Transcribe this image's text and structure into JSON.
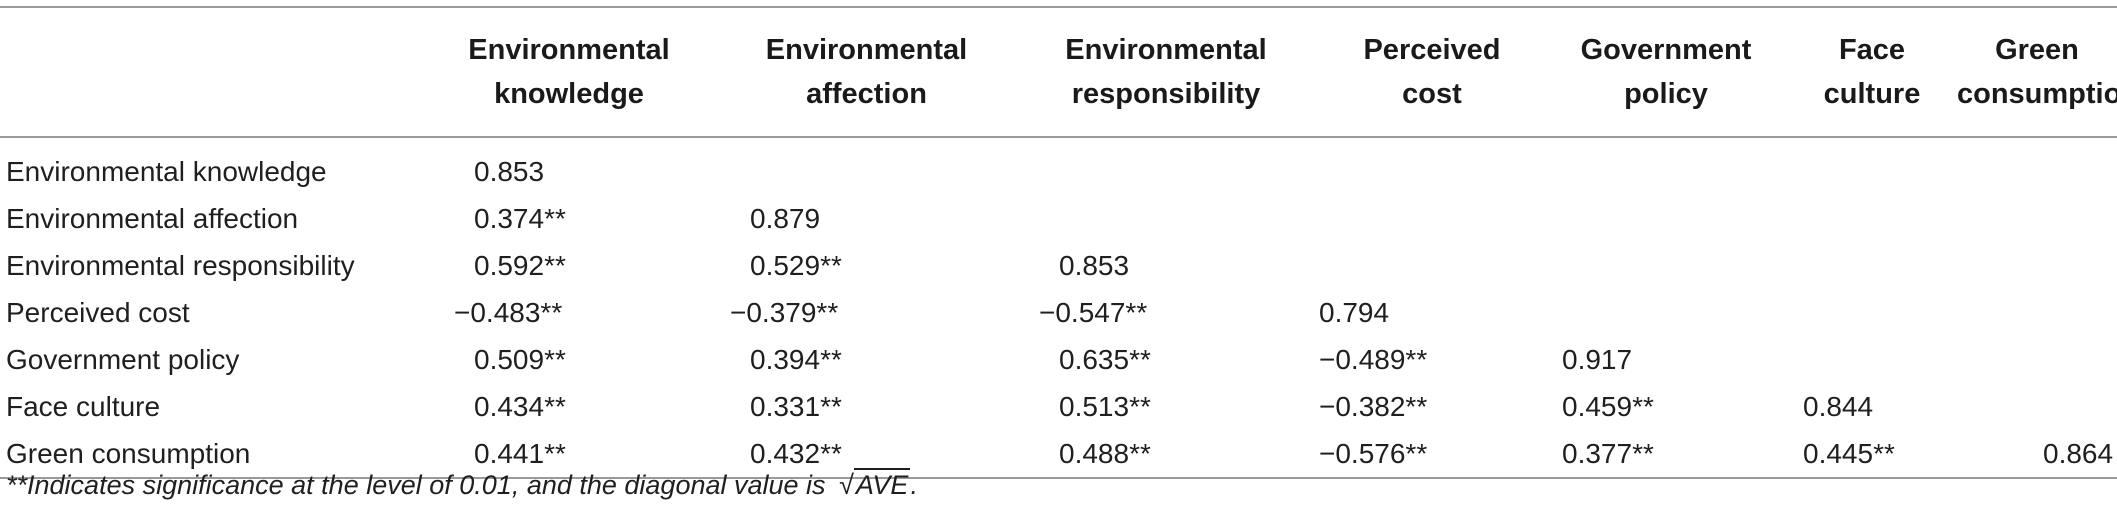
{
  "table": {
    "column_headers": [
      "",
      "Environmental knowledge",
      "Environmental affection",
      "Environmental responsibility",
      "Perceived cost",
      "Government policy",
      "Face culture",
      "Green consumption"
    ],
    "header_lines": [
      [
        "",
        ""
      ],
      [
        "Environmental",
        "knowledge"
      ],
      [
        "Environmental",
        "affection"
      ],
      [
        "Environmental",
        "responsibility"
      ],
      [
        "Perceived",
        "cost"
      ],
      [
        "Government",
        "policy"
      ],
      [
        "Face",
        "culture"
      ],
      [
        "Green",
        "consumption"
      ]
    ],
    "rows": [
      {
        "label": "Environmental knowledge",
        "cells": [
          "0.853",
          "",
          "",
          "",
          "",
          "",
          ""
        ]
      },
      {
        "label": "Environmental affection",
        "cells": [
          "0.374**",
          "0.879",
          "",
          "",
          "",
          "",
          ""
        ]
      },
      {
        "label": "Environmental responsibility",
        "cells": [
          "0.592**",
          "0.529**",
          "0.853",
          "",
          "",
          "",
          ""
        ]
      },
      {
        "label": "Perceived cost",
        "cells": [
          "−0.483**",
          "−0.379**",
          "−0.547**",
          "0.794",
          "",
          "",
          ""
        ]
      },
      {
        "label": "Government policy",
        "cells": [
          "0.509**",
          "0.394**",
          "0.635**",
          "−0.489**",
          "0.917",
          "",
          ""
        ]
      },
      {
        "label": "Face culture",
        "cells": [
          "0.434**",
          "0.331**",
          "0.513**",
          "−0.382**",
          "0.459**",
          "0.844",
          ""
        ]
      },
      {
        "label": "Green consumption",
        "cells": [
          "0.441**",
          "0.432**",
          "0.488**",
          "−0.576**",
          "0.377**",
          "0.445**",
          "0.864"
        ]
      }
    ]
  },
  "footnote": {
    "text": "**Indicates significance at the level of 0.01, and the diagonal value is",
    "sqrt_symbol": "√",
    "radicand": "AVE",
    "end": "."
  }
}
